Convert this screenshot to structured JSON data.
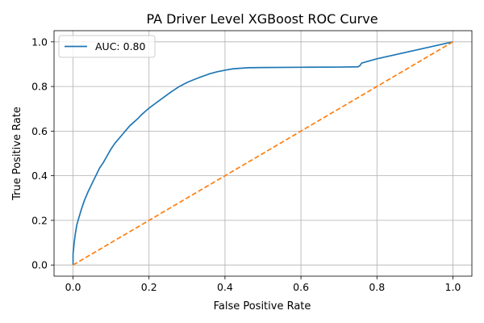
{
  "chart_data": {
    "type": "line",
    "title": "PA Driver Level XGBoost ROC Curve",
    "xlabel": "False Positive Rate",
    "ylabel": "True Positive Rate",
    "xlim": [
      -0.05,
      1.05
    ],
    "ylim": [
      -0.05,
      1.05
    ],
    "xticks": [
      0.0,
      0.2,
      0.4,
      0.6,
      0.8,
      1.0
    ],
    "yticks": [
      0.0,
      0.2,
      0.4,
      0.6,
      0.8,
      1.0
    ],
    "xtick_labels": [
      "0.0",
      "0.2",
      "0.4",
      "0.6",
      "0.8",
      "1.0"
    ],
    "ytick_labels": [
      "0.0",
      "0.2",
      "0.4",
      "0.6",
      "0.8",
      "1.0"
    ],
    "grid": true,
    "legend_position": "upper-left",
    "series": [
      {
        "name": "AUC: 0.80",
        "color": "#1f77b4",
        "style": "solid",
        "x": [
          0.0,
          0.0,
          0.003,
          0.006,
          0.01,
          0.015,
          0.022,
          0.03,
          0.04,
          0.05,
          0.06,
          0.07,
          0.08,
          0.09,
          0.1,
          0.11,
          0.12,
          0.13,
          0.14,
          0.15,
          0.16,
          0.17,
          0.18,
          0.19,
          0.2,
          0.22,
          0.24,
          0.26,
          0.28,
          0.3,
          0.32,
          0.34,
          0.36,
          0.38,
          0.4,
          0.42,
          0.46,
          0.5,
          0.6,
          0.7,
          0.75,
          0.755,
          0.76,
          0.8,
          0.9,
          1.0
        ],
        "y": [
          0.0,
          0.05,
          0.1,
          0.14,
          0.18,
          0.21,
          0.25,
          0.29,
          0.33,
          0.365,
          0.4,
          0.435,
          0.46,
          0.49,
          0.52,
          0.545,
          0.565,
          0.585,
          0.605,
          0.625,
          0.64,
          0.655,
          0.673,
          0.688,
          0.703,
          0.728,
          0.753,
          0.778,
          0.8,
          0.818,
          0.832,
          0.845,
          0.857,
          0.866,
          0.873,
          0.879,
          0.884,
          0.885,
          0.886,
          0.887,
          0.888,
          0.893,
          0.905,
          0.924,
          0.962,
          1.0
        ]
      },
      {
        "name": "",
        "color": "#ff7f0e",
        "style": "dashed",
        "x": [
          0.0,
          1.0
        ],
        "y": [
          0.0,
          1.0
        ]
      }
    ]
  }
}
